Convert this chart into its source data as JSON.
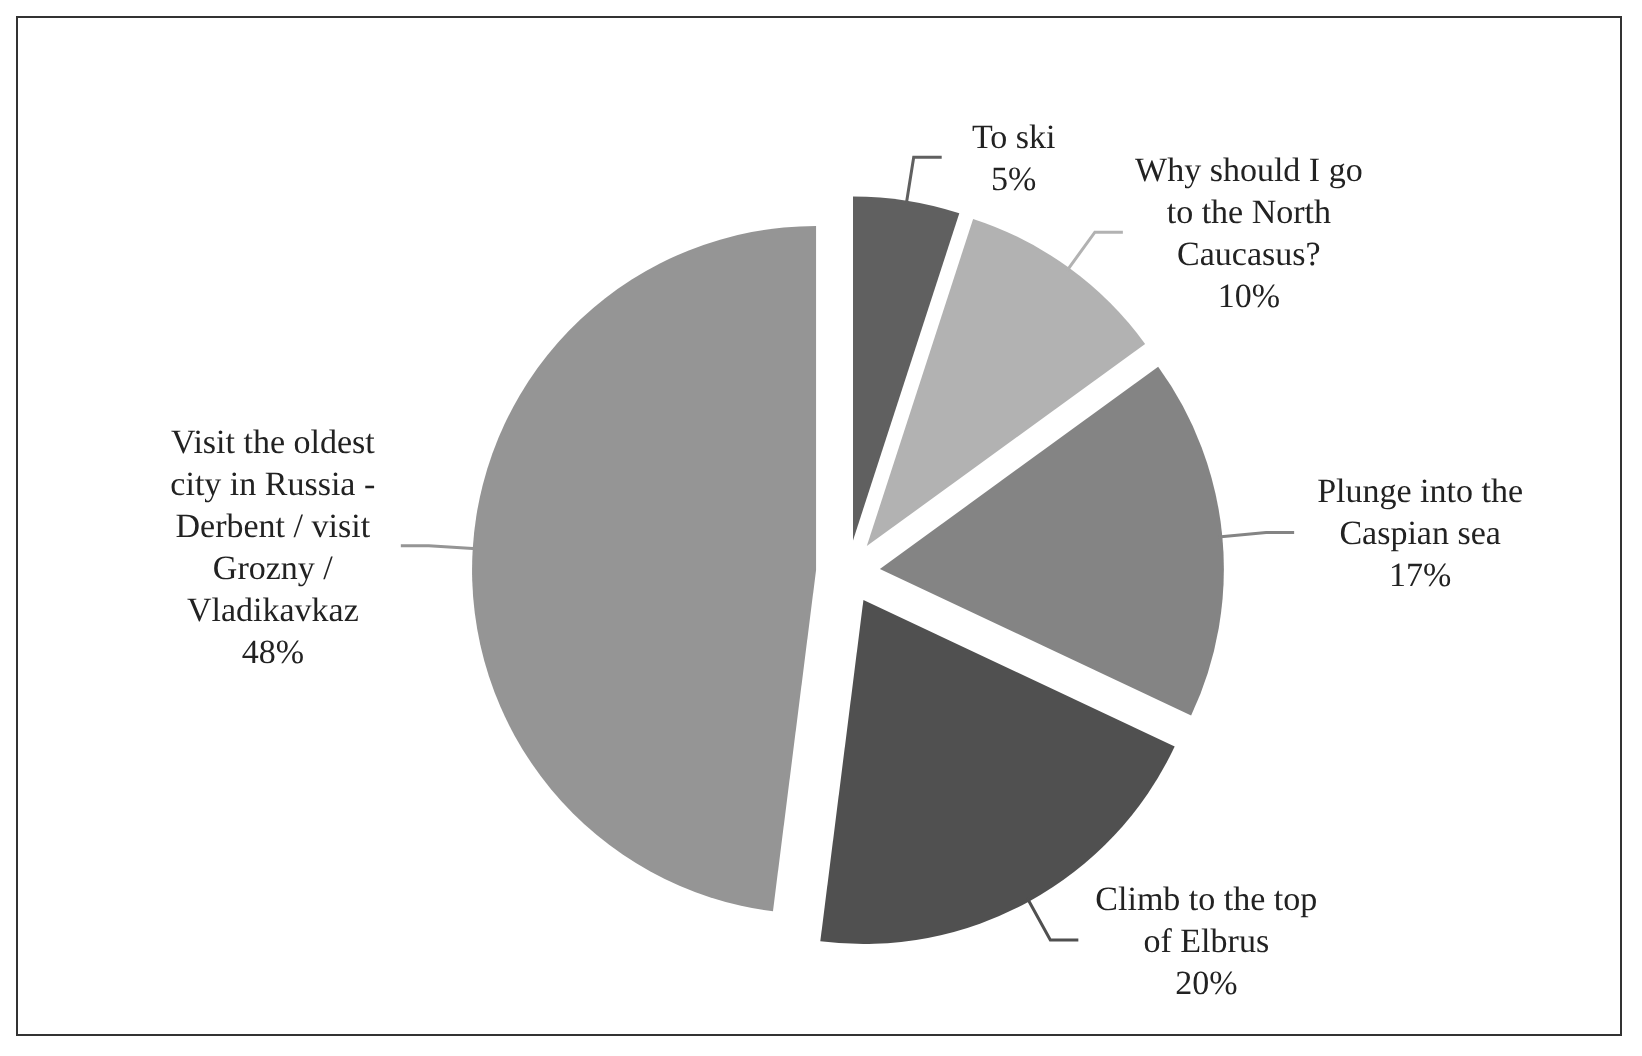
{
  "chart_data": {
    "type": "pie",
    "categories": [
      "To ski",
      "Why should I go to the North Caucasus?",
      "Plunge into the Caspian sea",
      "Climb to the top of Elbrus",
      "Visit the oldest city in Russia - Derbent / visit Grozny / Vladikavkaz"
    ],
    "values": [
      5,
      10,
      17,
      20,
      48
    ],
    "value_labels": [
      "5%",
      "10%",
      "17%",
      "20%",
      "48%"
    ],
    "colors": [
      "#606060",
      "#b2b2b2",
      "#848484",
      "#505050",
      "#959595"
    ]
  }
}
